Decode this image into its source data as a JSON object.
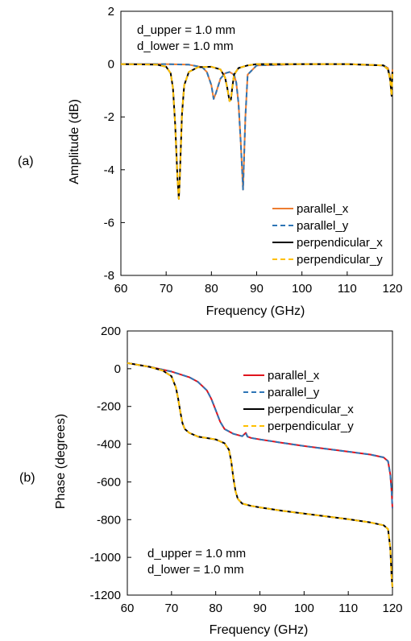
{
  "panels": [
    {
      "label": "(a)"
    },
    {
      "label": "(b)"
    }
  ],
  "chart_data": [
    {
      "type": "line",
      "xlabel": "Frequency (GHz)",
      "ylabel": "Amplitude (dB)",
      "xlim": [
        60,
        120
      ],
      "ylim": [
        -8,
        2
      ],
      "xticks": [
        60,
        70,
        80,
        90,
        100,
        110,
        120
      ],
      "yticks": [
        -8,
        -6,
        -4,
        -2,
        0,
        2
      ],
      "grid": false,
      "annotation": [
        "d_upper = 1.0 mm",
        "d_lower = 1.0 mm"
      ],
      "legend_position": "bottom-right",
      "series": [
        {
          "name": "parallel_x",
          "color": "#ED7D31",
          "dash": "solid",
          "x": [
            60,
            70,
            75,
            78,
            79,
            80,
            80.5,
            81,
            82,
            83,
            84,
            85,
            85.5,
            86,
            86.5,
            87,
            87.5,
            88,
            90,
            100,
            110,
            118,
            119,
            119.5,
            119.8,
            120
          ],
          "y": [
            0,
            0,
            -0.02,
            -0.12,
            -0.3,
            -0.8,
            -1.32,
            -1.1,
            -0.55,
            -0.35,
            -0.3,
            -0.4,
            -0.7,
            -1.5,
            -3.0,
            -4.75,
            -2.0,
            -0.4,
            -0.05,
            0,
            0,
            -0.05,
            -0.15,
            -0.5,
            -1.1,
            -0.2
          ]
        },
        {
          "name": "parallel_y",
          "color": "#2E75B6",
          "dash": "dashed",
          "x": [
            60,
            70,
            75,
            78,
            79,
            80,
            80.5,
            81,
            82,
            83,
            84,
            85,
            85.5,
            86,
            86.5,
            87,
            87.5,
            88,
            90,
            100,
            110,
            118,
            119,
            119.5,
            119.8,
            120
          ],
          "y": [
            0,
            0,
            -0.02,
            -0.12,
            -0.3,
            -0.8,
            -1.32,
            -1.1,
            -0.55,
            -0.35,
            -0.3,
            -0.4,
            -0.7,
            -1.5,
            -3.0,
            -4.75,
            -2.0,
            -0.4,
            -0.05,
            0,
            0,
            -0.05,
            -0.15,
            -0.5,
            -1.1,
            -0.2
          ]
        },
        {
          "name": "perpendicular_x",
          "color": "#000000",
          "dash": "solid",
          "x": [
            60,
            68,
            70,
            71,
            71.5,
            72,
            72.5,
            72.8,
            73,
            73.5,
            74,
            75,
            77,
            80,
            82,
            83,
            83.5,
            84,
            84.3,
            84.6,
            85,
            86,
            88,
            90,
            100,
            110,
            118,
            119,
            119.5,
            119.8,
            120
          ],
          "y": [
            0,
            -0.02,
            -0.1,
            -0.35,
            -0.9,
            -2.3,
            -4.3,
            -5.1,
            -4.4,
            -1.9,
            -0.8,
            -0.3,
            -0.12,
            -0.1,
            -0.2,
            -0.5,
            -0.9,
            -1.4,
            -1.35,
            -0.9,
            -0.4,
            -0.15,
            -0.05,
            0,
            0,
            0,
            -0.05,
            -0.2,
            -0.6,
            -1.2,
            -0.3
          ]
        },
        {
          "name": "perpendicular_y",
          "color": "#FFC000",
          "dash": "dashed",
          "x": [
            60,
            68,
            70,
            71,
            71.5,
            72,
            72.5,
            72.8,
            73,
            73.5,
            74,
            75,
            77,
            80,
            82,
            83,
            83.5,
            84,
            84.3,
            84.6,
            85,
            86,
            88,
            90,
            100,
            110,
            118,
            119,
            119.5,
            119.8,
            120
          ],
          "y": [
            0,
            -0.02,
            -0.1,
            -0.35,
            -0.9,
            -2.3,
            -4.3,
            -5.1,
            -4.4,
            -1.9,
            -0.8,
            -0.3,
            -0.12,
            -0.1,
            -0.2,
            -0.5,
            -0.9,
            -1.4,
            -1.35,
            -0.9,
            -0.4,
            -0.15,
            -0.05,
            0,
            0,
            0,
            -0.05,
            -0.2,
            -0.6,
            -1.2,
            -0.3
          ]
        }
      ]
    },
    {
      "type": "line",
      "xlabel": "Frequency (GHz)",
      "ylabel": "Phase (degrees)",
      "xlim": [
        60,
        120
      ],
      "ylim": [
        -1200,
        200
      ],
      "xticks": [
        60,
        70,
        80,
        90,
        100,
        110,
        120
      ],
      "yticks": [
        -1200,
        -1000,
        -800,
        -600,
        -400,
        -200,
        0,
        200
      ],
      "grid": false,
      "annotation": [
        "d_upper = 1.0 mm",
        "d_lower = 1.0 mm"
      ],
      "legend_position": "top-right",
      "series": [
        {
          "name": "parallel_x",
          "color": "#E0141E",
          "dash": "solid",
          "x": [
            60,
            65,
            70,
            74,
            76,
            78,
            79,
            80,
            81,
            82,
            84,
            86,
            86.8,
            87.2,
            88,
            90,
            95,
            100,
            105,
            110,
            115,
            118,
            119,
            119.5,
            119.8,
            120
          ],
          "y": [
            30,
            10,
            -15,
            -45,
            -70,
            -115,
            -160,
            -220,
            -280,
            -320,
            -345,
            -358,
            -340,
            -360,
            -367,
            -375,
            -393,
            -410,
            -425,
            -440,
            -455,
            -470,
            -490,
            -560,
            -650,
            -740
          ]
        },
        {
          "name": "parallel_y",
          "color": "#2E75B6",
          "dash": "dashed",
          "x": [
            60,
            65,
            70,
            74,
            76,
            78,
            79,
            80,
            81,
            82,
            84,
            86,
            86.8,
            87.2,
            88,
            90,
            95,
            100,
            105,
            110,
            115,
            118,
            119,
            119.5,
            119.8,
            120
          ],
          "y": [
            30,
            10,
            -15,
            -45,
            -70,
            -115,
            -160,
            -220,
            -280,
            -320,
            -345,
            -358,
            -340,
            -360,
            -367,
            -375,
            -393,
            -410,
            -425,
            -440,
            -455,
            -470,
            -490,
            -560,
            -650,
            -740
          ]
        },
        {
          "name": "perpendicular_x",
          "color": "#000000",
          "dash": "solid",
          "x": [
            60,
            65,
            68,
            70,
            71,
            71.5,
            72,
            72.5,
            73,
            74,
            76,
            80,
            82,
            83,
            83.5,
            84,
            84.5,
            85,
            86,
            88,
            90,
            95,
            100,
            105,
            110,
            115,
            118,
            119,
            119.5,
            119.8,
            120
          ],
          "y": [
            30,
            10,
            -10,
            -40,
            -100,
            -160,
            -230,
            -290,
            -320,
            -340,
            -360,
            -375,
            -395,
            -430,
            -490,
            -580,
            -650,
            -690,
            -715,
            -727,
            -735,
            -753,
            -768,
            -783,
            -798,
            -815,
            -830,
            -850,
            -950,
            -1100,
            -1160
          ]
        },
        {
          "name": "perpendicular_y",
          "color": "#FFC000",
          "dash": "dashed",
          "x": [
            60,
            65,
            68,
            70,
            71,
            71.5,
            72,
            72.5,
            73,
            74,
            76,
            80,
            82,
            83,
            83.5,
            84,
            84.5,
            85,
            86,
            88,
            90,
            95,
            100,
            105,
            110,
            115,
            118,
            119,
            119.5,
            119.8,
            120
          ],
          "y": [
            30,
            10,
            -10,
            -40,
            -100,
            -160,
            -230,
            -290,
            -320,
            -340,
            -360,
            -375,
            -395,
            -430,
            -490,
            -580,
            -650,
            -690,
            -715,
            -727,
            -735,
            -753,
            -768,
            -783,
            -798,
            -815,
            -830,
            -850,
            -950,
            -1100,
            -1160
          ]
        }
      ]
    }
  ]
}
